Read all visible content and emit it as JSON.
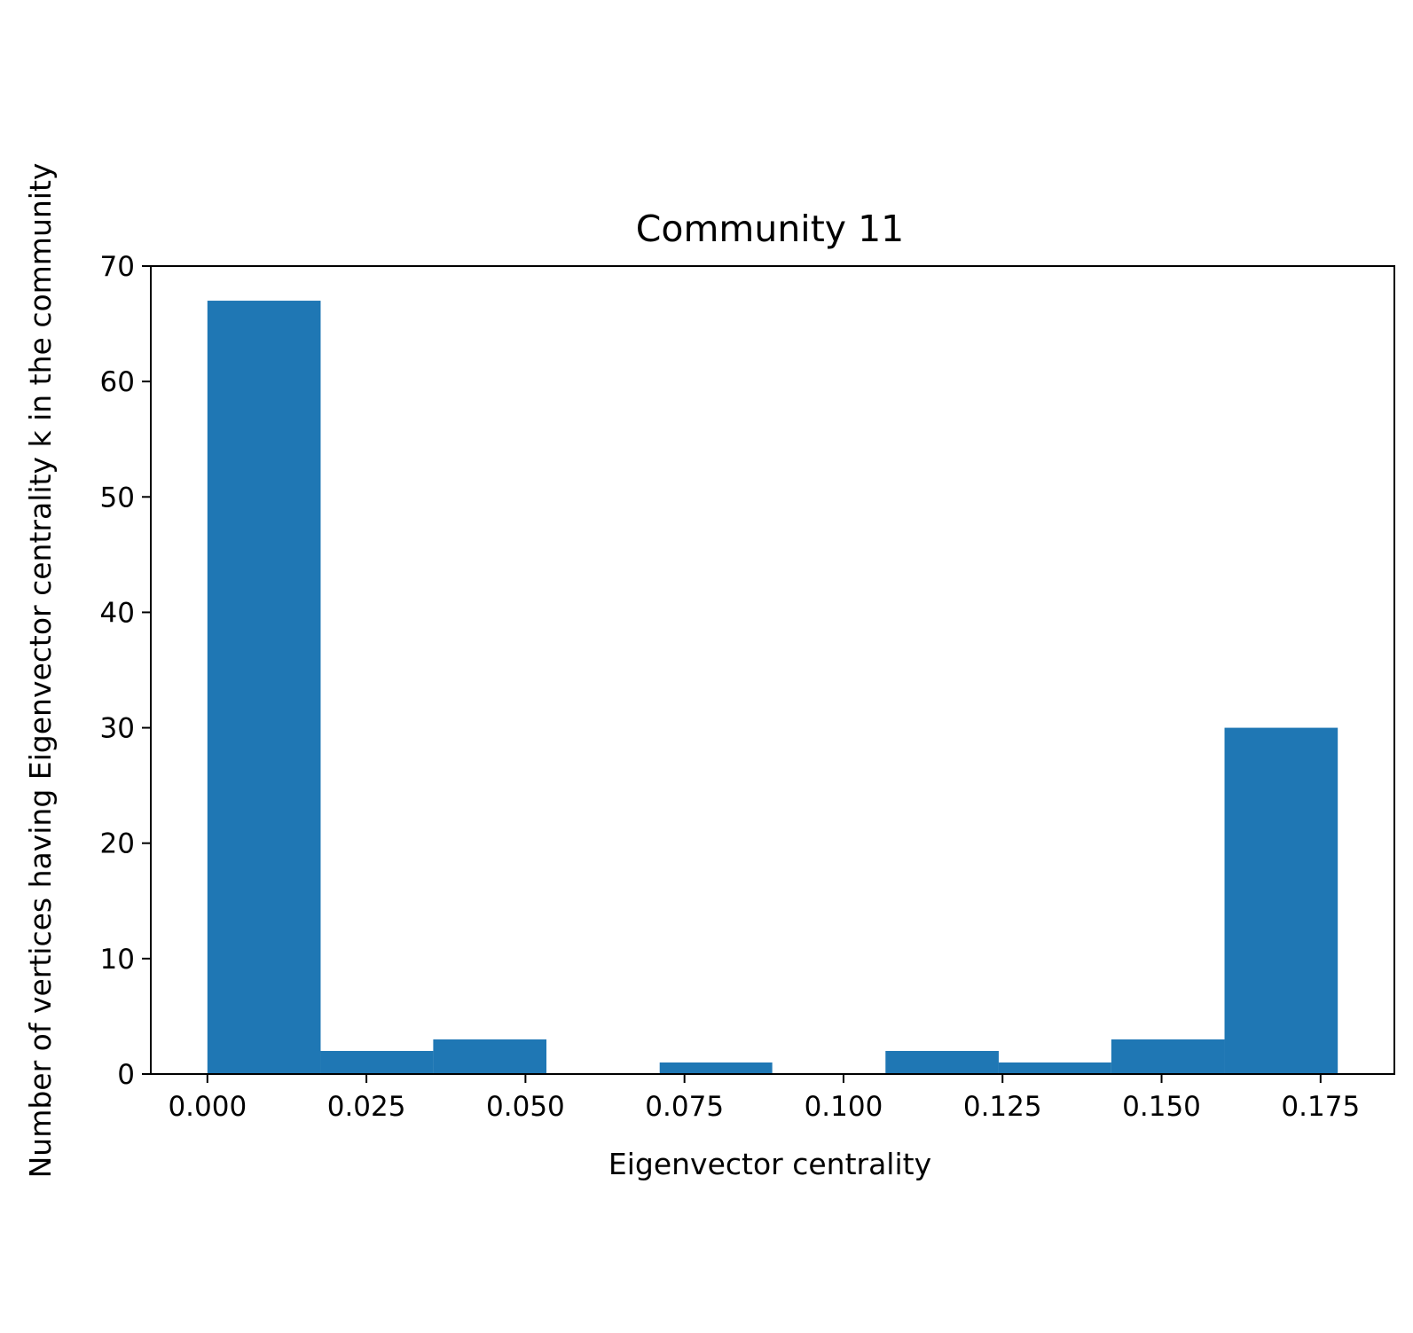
{
  "chart_data": {
    "type": "bar",
    "title": "Community 11",
    "xlabel": "Eigenvector centrality",
    "ylabel": "Number of vertices having Eigenvector centrality k in the community",
    "bins": [
      {
        "start": 0.0,
        "end": 0.0178,
        "count": 67
      },
      {
        "start": 0.0178,
        "end": 0.0355,
        "count": 2
      },
      {
        "start": 0.0355,
        "end": 0.0533,
        "count": 3
      },
      {
        "start": 0.0533,
        "end": 0.0711,
        "count": 0
      },
      {
        "start": 0.0711,
        "end": 0.0888,
        "count": 1
      },
      {
        "start": 0.0888,
        "end": 0.1066,
        "count": 0
      },
      {
        "start": 0.1066,
        "end": 0.1244,
        "count": 2
      },
      {
        "start": 0.1244,
        "end": 0.1421,
        "count": 1
      },
      {
        "start": 0.1421,
        "end": 0.1599,
        "count": 3
      },
      {
        "start": 0.1599,
        "end": 0.1777,
        "count": 30
      }
    ],
    "xlim": [
      -0.0089,
      0.1866
    ],
    "ylim": [
      0,
      70
    ],
    "xticks": [
      0.0,
      0.025,
      0.05,
      0.075,
      0.1,
      0.125,
      0.15,
      0.175
    ],
    "xtick_labels": [
      "0.000",
      "0.025",
      "0.050",
      "0.075",
      "0.100",
      "0.125",
      "0.150",
      "0.175"
    ],
    "yticks": [
      0,
      10,
      20,
      30,
      40,
      50,
      60,
      70
    ],
    "ytick_labels": [
      "0",
      "10",
      "20",
      "30",
      "40",
      "50",
      "60",
      "70"
    ],
    "bar_color": "#1f77b4",
    "grid": false,
    "legend": "none"
  }
}
